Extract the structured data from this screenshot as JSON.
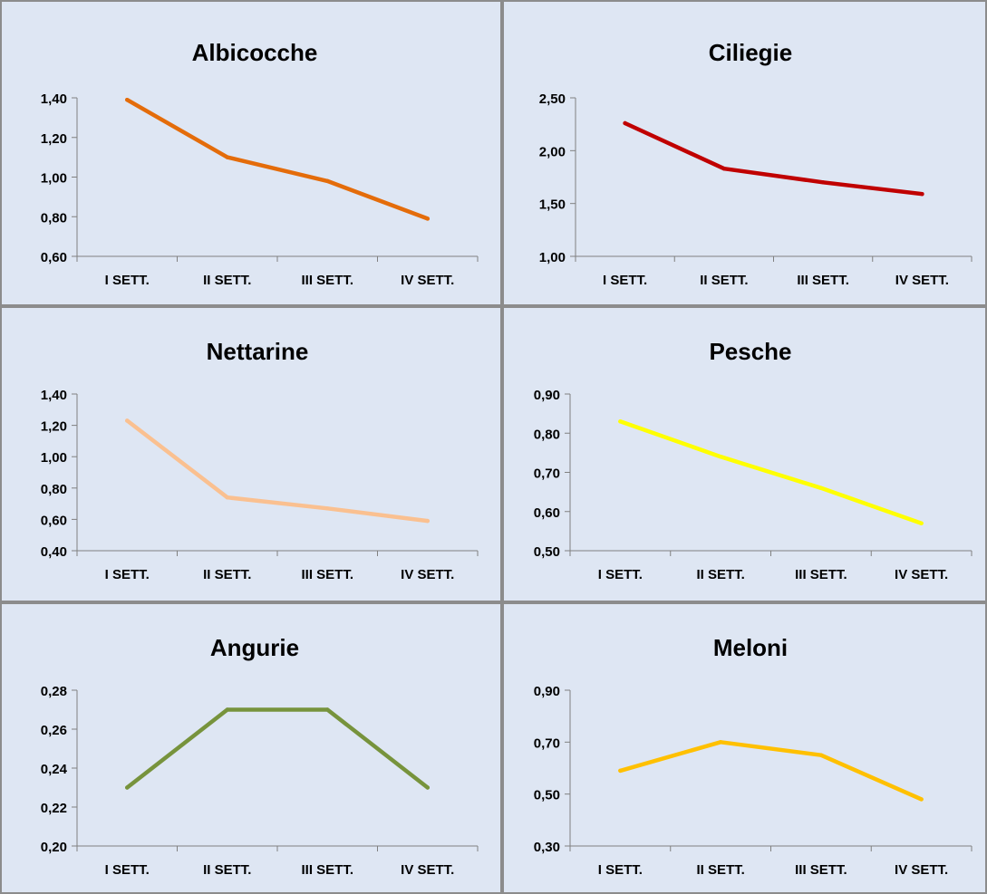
{
  "chart_data": [
    {
      "type": "line",
      "title": "Albicocche",
      "categories": [
        "I SETT.",
        "II SETT.",
        "III SETT.",
        "IV SETT."
      ],
      "values": [
        1.39,
        1.1,
        0.98,
        0.79
      ],
      "ylim": [
        0.6,
        1.4
      ],
      "yticks": [
        0.6,
        0.8,
        1.0,
        1.2,
        1.4
      ],
      "ytick_labels": [
        "0,60",
        "0,80",
        "1,00",
        "1,20",
        "1,40"
      ],
      "color": "#E46C0A",
      "grid": false
    },
    {
      "type": "line",
      "title": "Ciliegie",
      "categories": [
        "I SETT.",
        "II SETT.",
        "III SETT.",
        "IV SETT."
      ],
      "values": [
        2.26,
        1.83,
        1.7,
        1.59
      ],
      "ylim": [
        1.0,
        2.5
      ],
      "yticks": [
        1.0,
        1.5,
        2.0,
        2.5
      ],
      "ytick_labels": [
        "1,00",
        "1,50",
        "2,00",
        "2,50"
      ],
      "color": "#C00000",
      "grid": false
    },
    {
      "type": "line",
      "title": "Nettarine",
      "categories": [
        "I SETT.",
        "II SETT.",
        "III SETT.",
        "IV SETT."
      ],
      "values": [
        1.23,
        0.74,
        0.67,
        0.59
      ],
      "ylim": [
        0.4,
        1.4
      ],
      "yticks": [
        0.4,
        0.6,
        0.8,
        1.0,
        1.2,
        1.4
      ],
      "ytick_labels": [
        "0,40",
        "0,60",
        "0,80",
        "1,00",
        "1,20",
        "1,40"
      ],
      "color": "#FAC090",
      "grid": false
    },
    {
      "type": "line",
      "title": "Pesche",
      "categories": [
        "I SETT.",
        "II SETT.",
        "III SETT.",
        "IV SETT."
      ],
      "values": [
        0.83,
        0.74,
        0.66,
        0.57
      ],
      "ylim": [
        0.5,
        0.9
      ],
      "yticks": [
        0.5,
        0.6,
        0.7,
        0.8,
        0.9
      ],
      "ytick_labels": [
        "0,50",
        "0,60",
        "0,70",
        "0,80",
        "0,90"
      ],
      "color": "#FFFF00",
      "grid": false
    },
    {
      "type": "line",
      "title": "Angurie",
      "categories": [
        "I SETT.",
        "II SETT.",
        "III SETT.",
        "IV SETT."
      ],
      "values": [
        0.23,
        0.27,
        0.27,
        0.23
      ],
      "ylim": [
        0.2,
        0.28
      ],
      "yticks": [
        0.2,
        0.22,
        0.24,
        0.26,
        0.28
      ],
      "ytick_labels": [
        "0,20",
        "0,22",
        "0,24",
        "0,26",
        "0,28"
      ],
      "color": "#77933C",
      "grid": false
    },
    {
      "type": "line",
      "title": "Meloni",
      "categories": [
        "I SETT.",
        "II SETT.",
        "III SETT.",
        "IV SETT."
      ],
      "values": [
        0.59,
        0.7,
        0.65,
        0.48
      ],
      "ylim": [
        0.3,
        0.9
      ],
      "yticks": [
        0.3,
        0.5,
        0.7,
        0.9
      ],
      "ytick_labels": [
        "0,30",
        "0,50",
        "0,70",
        "0,90"
      ],
      "color": "#FFC000",
      "grid": false
    }
  ],
  "style": {
    "panel_background": "#DEE6F3",
    "panel_border": "#8C8C8C",
    "axis_color": "#808080"
  }
}
